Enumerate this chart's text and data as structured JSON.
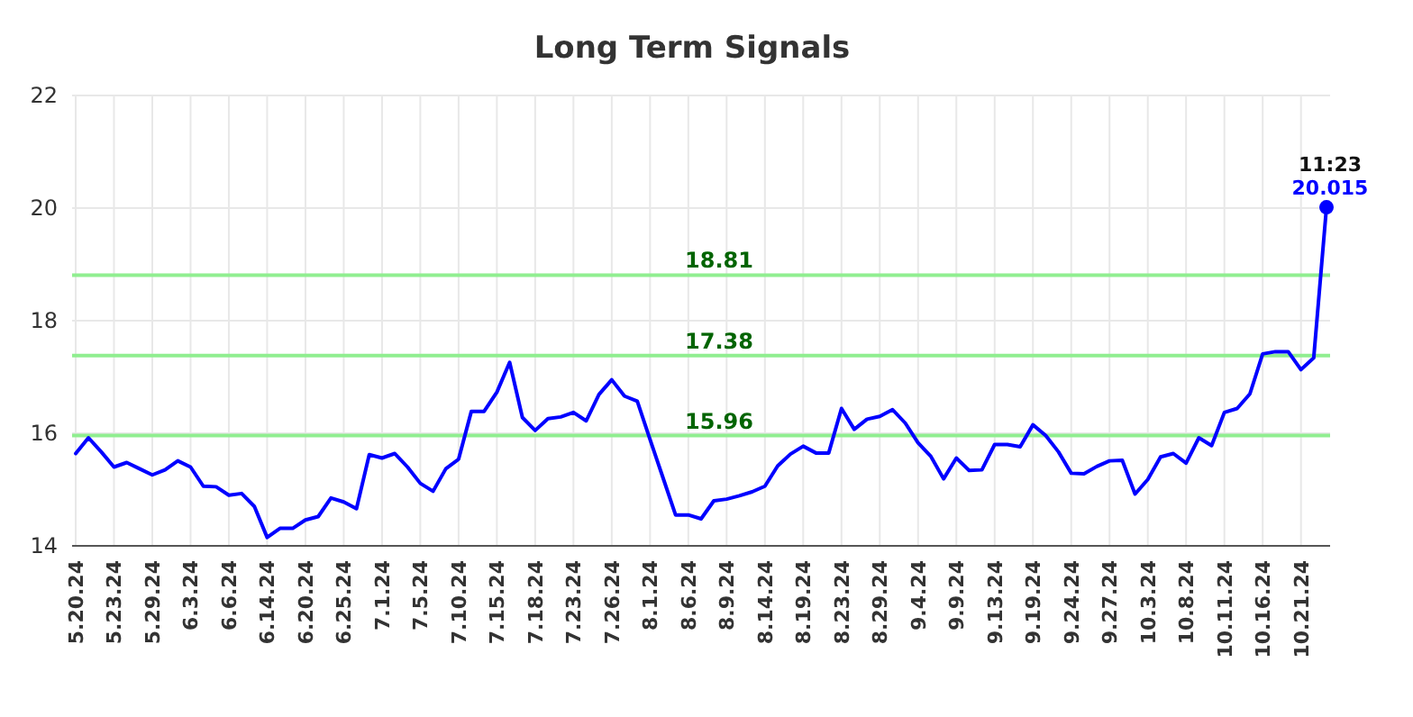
{
  "chart_data": {
    "type": "line",
    "title": "Long Term Signals",
    "categories": [
      "5.20.24",
      null,
      null,
      "5.23.24",
      null,
      null,
      "5.29.24",
      null,
      null,
      "6.3.24",
      null,
      null,
      "6.6.24",
      null,
      null,
      "6.14.24",
      null,
      null,
      "6.20.24",
      null,
      null,
      "6.25.24",
      null,
      null,
      "7.1.24",
      null,
      null,
      "7.5.24",
      null,
      null,
      "7.10.24",
      null,
      null,
      "7.15.24",
      null,
      null,
      "7.18.24",
      null,
      null,
      "7.23.24",
      null,
      null,
      "7.26.24",
      null,
      null,
      "8.1.24",
      null,
      null,
      "8.6.24",
      null,
      null,
      "8.9.24",
      null,
      null,
      "8.14.24",
      null,
      null,
      "8.19.24",
      null,
      null,
      "8.23.24",
      null,
      null,
      "8.29.24",
      null,
      null,
      "9.4.24",
      null,
      null,
      "9.9.24",
      null,
      null,
      "9.13.24",
      null,
      null,
      "9.19.24",
      null,
      null,
      "9.24.24",
      null,
      null,
      "9.27.24",
      null,
      null,
      "10.3.24",
      null,
      null,
      "10.8.24",
      null,
      null,
      "10.11.24",
      null,
      null,
      "10.16.24",
      null,
      null,
      "10.21.24",
      null,
      null
    ],
    "series": [
      {
        "color": "#0000ff",
        "values": [
          15.64,
          15.92,
          15.67,
          15.4,
          15.48,
          15.37,
          15.26,
          15.35,
          15.51,
          15.4,
          15.06,
          15.05,
          14.9,
          14.93,
          14.7,
          14.15,
          14.31,
          14.31,
          14.46,
          14.52,
          14.85,
          14.78,
          14.66,
          15.62,
          15.56,
          15.64,
          15.4,
          15.11,
          14.97,
          15.37,
          15.54,
          16.39,
          16.39,
          16.73,
          17.26,
          16.28,
          16.05,
          16.26,
          16.29,
          16.37,
          16.22,
          16.69,
          16.95,
          16.66,
          16.57,
          15.89,
          15.22,
          14.55,
          14.55,
          14.48,
          14.8,
          14.83,
          14.89,
          14.96,
          15.06,
          15.42,
          15.63,
          15.77,
          15.65,
          15.65,
          16.44,
          16.07,
          16.25,
          16.3,
          16.42,
          16.18,
          15.83,
          15.59,
          15.19,
          15.56,
          15.34,
          15.35,
          15.8,
          15.8,
          15.76,
          16.15,
          15.96,
          15.67,
          15.29,
          15.28,
          15.41,
          15.51,
          15.52,
          14.92,
          15.18,
          15.58,
          15.64,
          15.47,
          15.92,
          15.78,
          16.37,
          16.44,
          16.7,
          17.41,
          17.45,
          17.45,
          17.13,
          17.34,
          20.015
        ],
        "value_labels": [
          null,
          null,
          null,
          null,
          null,
          null,
          null,
          null,
          null,
          null,
          null,
          null,
          null,
          null,
          null,
          null,
          null,
          null,
          null,
          null,
          null,
          null,
          null,
          null,
          null,
          null,
          null,
          null,
          null,
          null,
          null,
          null,
          null,
          null,
          null,
          null,
          null,
          null,
          null,
          null,
          null,
          null,
          null,
          null,
          null,
          null,
          null,
          null,
          null,
          null,
          null,
          null,
          null,
          null,
          null,
          null,
          null,
          null,
          null,
          null,
          null,
          null,
          null,
          null,
          null,
          null,
          null,
          null,
          null,
          null,
          null,
          null,
          null,
          null,
          null,
          null,
          null,
          null,
          null,
          null,
          null,
          null,
          null,
          null,
          null,
          null,
          null,
          null,
          null,
          null,
          null,
          null,
          null,
          null,
          null,
          null,
          null,
          null,
          "20.015"
        ]
      }
    ],
    "annotations": [
      "11:23"
    ],
    "ylim": [
      14,
      22
    ],
    "yticks": [
      14,
      16,
      18,
      20,
      22
    ],
    "grid": true,
    "ref_lines": [
      {
        "axis": "y",
        "value": 18.81,
        "label": "18.81",
        "color": "#90ee90"
      },
      {
        "axis": "y",
        "value": 17.38,
        "label": "17.38",
        "color": "#90ee90"
      },
      {
        "axis": "y",
        "value": 15.96,
        "label": "15.96",
        "color": "#90ee90"
      }
    ]
  }
}
